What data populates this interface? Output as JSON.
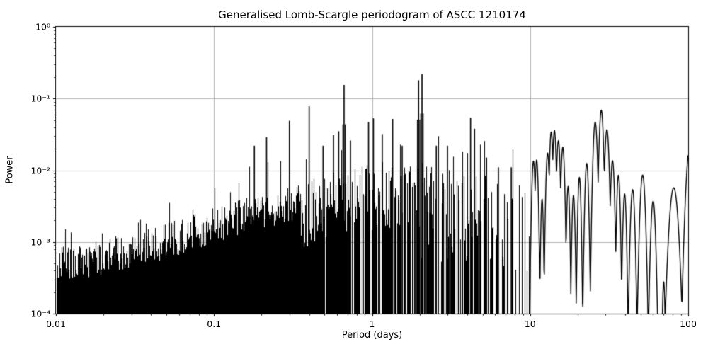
{
  "chart_data": {
    "type": "line",
    "title": "Generalised Lomb-Scargle periodogram of ASCC 1210174",
    "xlabel": "Period (days)",
    "ylabel": "Power",
    "xscale": "log",
    "yscale": "log",
    "xlim": [
      0.01,
      100
    ],
    "ylim": [
      0.0001,
      1
    ],
    "x_tick_values": [
      0.01,
      0.1,
      1,
      10,
      100
    ],
    "x_tick_labels": [
      "0.01",
      "0.1",
      "1",
      "10",
      "100"
    ],
    "y_tick_values": [
      0.0001,
      0.001,
      0.01,
      0.1,
      1
    ],
    "y_tick_labels": [
      "10⁻⁴",
      "10⁻³",
      "10⁻²",
      "10⁻¹",
      "10⁰"
    ],
    "grid": true,
    "grid_color": "#b4b4b4",
    "line_color": "#000000",
    "background_color": "#ffffff",
    "legend": "none",
    "noise_envelope": [
      {
        "period": 0.01,
        "power": 0.00085
      },
      {
        "period": 0.02,
        "power": 0.0011
      },
      {
        "period": 0.04,
        "power": 0.0016
      },
      {
        "period": 0.07,
        "power": 0.0023
      },
      {
        "period": 0.1,
        "power": 0.003
      },
      {
        "period": 0.15,
        "power": 0.004
      },
      {
        "period": 0.22,
        "power": 0.005
      },
      {
        "period": 0.3,
        "power": 0.006
      },
      {
        "period": 0.5,
        "power": 0.009
      },
      {
        "period": 0.8,
        "power": 0.012
      },
      {
        "period": 1.2,
        "power": 0.014
      },
      {
        "period": 2.0,
        "power": 0.013
      },
      {
        "period": 3.0,
        "power": 0.011
      },
      {
        "period": 5.0,
        "power": 0.009
      },
      {
        "period": 7.0,
        "power": 0.0085
      },
      {
        "period": 10.0,
        "power": 0.0085
      }
    ],
    "major_peaks": [
      {
        "period": 0.18,
        "power": 0.022
      },
      {
        "period": 0.215,
        "power": 0.029
      },
      {
        "period": 0.3,
        "power": 0.049
      },
      {
        "period": 0.4,
        "power": 0.078
      },
      {
        "period": 0.49,
        "power": 0.022
      },
      {
        "period": 0.57,
        "power": 0.031
      },
      {
        "period": 0.615,
        "power": 0.035
      },
      {
        "period": 0.665,
        "power": 0.155
      },
      {
        "period": 0.73,
        "power": 0.026
      },
      {
        "period": 0.95,
        "power": 0.047
      },
      {
        "period": 1.02,
        "power": 0.053
      },
      {
        "period": 1.16,
        "power": 0.032
      },
      {
        "period": 1.35,
        "power": 0.052
      },
      {
        "period": 1.55,
        "power": 0.022
      },
      {
        "period": 1.97,
        "power": 0.18
      },
      {
        "period": 2.07,
        "power": 0.22
      },
      {
        "period": 2.55,
        "power": 0.022
      },
      {
        "period": 3.0,
        "power": 0.022
      },
      {
        "period": 4.2,
        "power": 0.054
      },
      {
        "period": 4.45,
        "power": 0.038
      },
      {
        "period": 5.3,
        "power": 0.015
      },
      {
        "period": 6.3,
        "power": 0.011
      },
      {
        "period": 7.6,
        "power": 0.011
      }
    ],
    "resolved_humps": [
      {
        "period": 10.5,
        "power": 0.0135,
        "width_dex": 0.016
      },
      {
        "period": 11.0,
        "power": 0.014,
        "width_dex": 0.015
      },
      {
        "period": 11.9,
        "power": 0.004,
        "width_dex": 0.012
      },
      {
        "period": 12.9,
        "power": 0.0175,
        "width_dex": 0.016
      },
      {
        "period": 13.6,
        "power": 0.0345,
        "width_dex": 0.016
      },
      {
        "period": 14.25,
        "power": 0.036,
        "width_dex": 0.016
      },
      {
        "period": 15.1,
        "power": 0.026,
        "width_dex": 0.017
      },
      {
        "period": 16.1,
        "power": 0.021,
        "width_dex": 0.017
      },
      {
        "period": 17.4,
        "power": 0.006,
        "width_dex": 0.014
      },
      {
        "period": 18.8,
        "power": 0.0045,
        "width_dex": 0.014
      },
      {
        "period": 20.5,
        "power": 0.008,
        "width_dex": 0.015
      },
      {
        "period": 22.8,
        "power": 0.0125,
        "width_dex": 0.017
      },
      {
        "period": 25.8,
        "power": 0.047,
        "width_dex": 0.02
      },
      {
        "period": 28.2,
        "power": 0.069,
        "width_dex": 0.02
      },
      {
        "period": 30.6,
        "power": 0.037,
        "width_dex": 0.02
      },
      {
        "period": 33.2,
        "power": 0.0137,
        "width_dex": 0.018
      },
      {
        "period": 36.2,
        "power": 0.0086,
        "width_dex": 0.016
      },
      {
        "period": 39.6,
        "power": 0.0047,
        "width_dex": 0.016
      },
      {
        "period": 44.5,
        "power": 0.0054,
        "width_dex": 0.02
      },
      {
        "period": 51.5,
        "power": 0.0086,
        "width_dex": 0.024
      },
      {
        "period": 60.0,
        "power": 0.0037,
        "width_dex": 0.022
      },
      {
        "period": 70.0,
        "power": 0.00028,
        "width_dex": 0.012
      },
      {
        "period": 81.0,
        "power": 0.0057,
        "width_dex": 0.04
      },
      {
        "period": 103.0,
        "power": 0.023,
        "width_dex": 0.035
      }
    ],
    "texture": {
      "seed": 42,
      "solid_until_period": 0.35,
      "gaps_start_period": 0.42,
      "forest_until_period": 10,
      "spike_probability": 0.06
    }
  }
}
